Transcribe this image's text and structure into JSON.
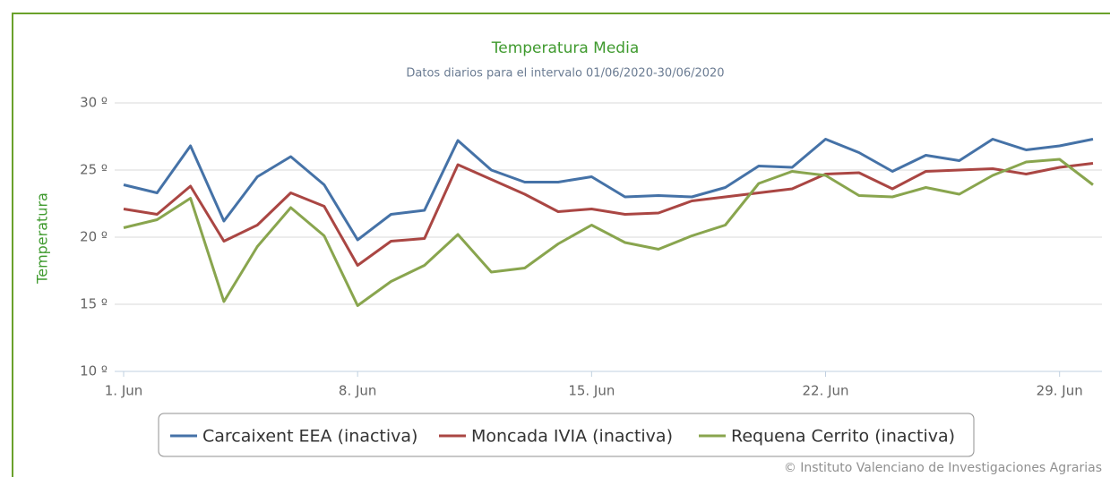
{
  "chart_data": {
    "type": "line",
    "title": "Temperatura Media",
    "subtitle": "Datos diarios para el intervalo 01/06/2020-30/06/2020",
    "y_label": "Temperatura",
    "credit": "© Instituto Valenciano de Investigaciones Agrarias",
    "categories": [
      "1. Jun",
      null,
      null,
      null,
      null,
      null,
      null,
      "8. Jun",
      null,
      null,
      null,
      null,
      null,
      null,
      "15. Jun",
      null,
      null,
      null,
      null,
      null,
      null,
      "22. Jun",
      null,
      null,
      null,
      null,
      null,
      null,
      "29. Jun",
      null
    ],
    "series": [
      {
        "name": "Carcaixent EEA (inactiva)",
        "color": "#4572a7",
        "values": [
          23.9,
          23.3,
          26.8,
          21.2,
          24.5,
          26.0,
          23.9,
          19.8,
          21.7,
          22.0,
          27.2,
          25.0,
          24.1,
          24.1,
          24.5,
          23.0,
          23.1,
          23.0,
          23.7,
          25.3,
          25.2,
          27.3,
          26.3,
          24.9,
          26.1,
          25.7,
          27.3,
          26.5,
          26.8,
          27.3
        ]
      },
      {
        "name": "Moncada IVIA (inactiva)",
        "color": "#aa4643",
        "values": [
          22.1,
          21.7,
          23.8,
          19.7,
          20.9,
          23.3,
          22.3,
          17.9,
          19.7,
          19.9,
          25.4,
          24.3,
          23.2,
          21.9,
          22.1,
          21.7,
          21.8,
          22.7,
          23.0,
          23.3,
          23.6,
          24.7,
          24.8,
          23.6,
          24.9,
          25.0,
          25.1,
          24.7,
          25.2,
          25.5
        ]
      },
      {
        "name": "Requena Cerrito (inactiva)",
        "color": "#89a54e",
        "values": [
          20.7,
          21.3,
          22.9,
          15.2,
          19.3,
          22.2,
          20.1,
          14.9,
          16.7,
          17.9,
          20.2,
          17.4,
          17.7,
          19.5,
          20.9,
          19.6,
          19.1,
          20.1,
          20.9,
          24.0,
          24.9,
          24.6,
          23.1,
          23.0,
          23.7,
          23.2,
          24.6,
          25.6,
          25.8,
          23.9
        ]
      }
    ],
    "ylim": [
      10,
      30
    ],
    "yticks": [
      {
        "value": 10,
        "label": "10 º"
      },
      {
        "value": 15,
        "label": "15 º"
      },
      {
        "value": 20,
        "label": "20 º"
      },
      {
        "value": 25,
        "label": "25 º"
      },
      {
        "value": 30,
        "label": "30 º"
      }
    ],
    "grid": true
  }
}
